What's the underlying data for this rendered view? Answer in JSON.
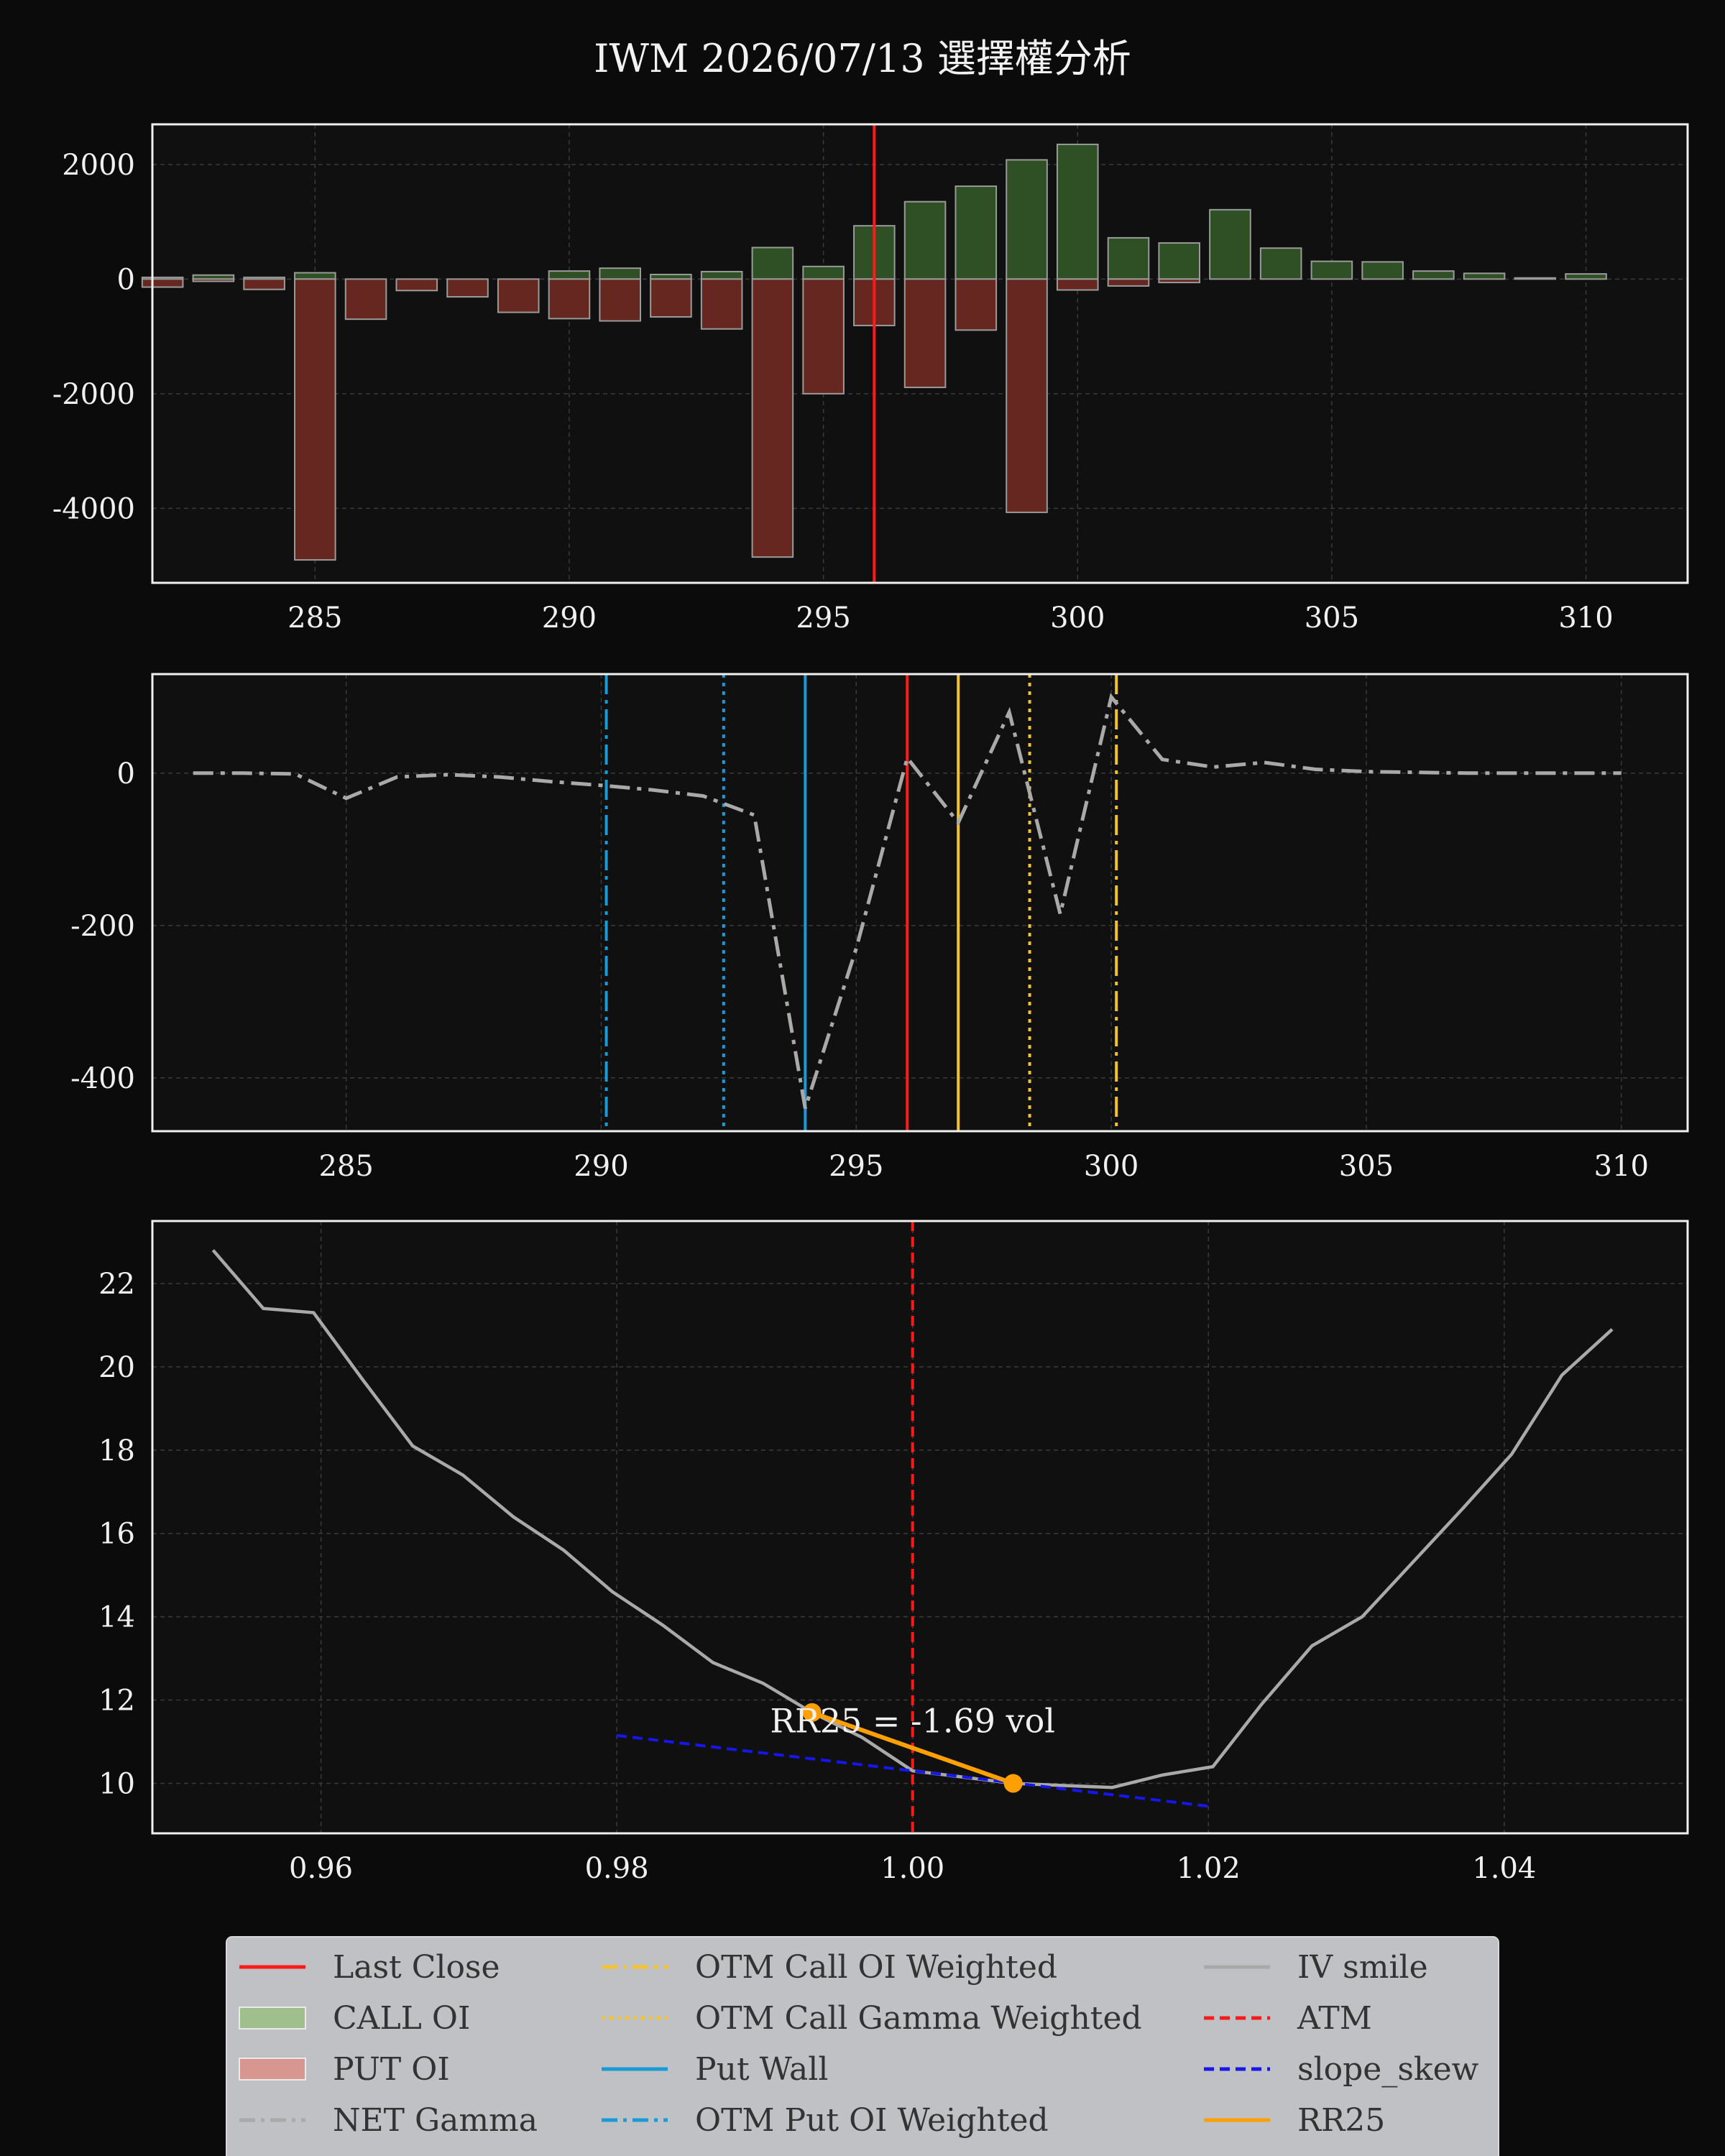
{
  "title": "IWM 2026/07/13 選擇權分析",
  "colors": {
    "background": "#0b0b0b",
    "panel": "#101010",
    "call": "#2f4f24",
    "put": "#652720",
    "last_close": "#ff1a1a",
    "net_gamma": "#a9a9a9",
    "otm_call": "#f1c232",
    "put_wall": "#1a9ad6",
    "iv_smile": "#a9a9a9",
    "atm": "#ff1a1a",
    "slope_skew": "#1616ee",
    "rr25": "#ffa000"
  },
  "chart_data": [
    {
      "type": "bar",
      "name": "oi_panel",
      "x_ticks": [
        285,
        290,
        295,
        300,
        305,
        310
      ],
      "y_ticks": [
        2000,
        0,
        -2000,
        -4000
      ],
      "xlim": [
        281.8,
        312.0
      ],
      "ylim": [
        -5300,
        2700
      ],
      "strikes": [
        282,
        283,
        284,
        285,
        286,
        287,
        288,
        289,
        290,
        291,
        292,
        293,
        294,
        295,
        296,
        297,
        298,
        299,
        300,
        301,
        302,
        303,
        304,
        305,
        306,
        307,
        308,
        309,
        310
      ],
      "call_oi": [
        30,
        70,
        30,
        110,
        0,
        0,
        0,
        0,
        140,
        190,
        80,
        130,
        550,
        220,
        930,
        1350,
        1620,
        2080,
        2350,
        720,
        630,
        1210,
        540,
        310,
        300,
        140,
        100,
        20,
        90
      ],
      "put_oi": [
        -140,
        -40,
        -180,
        -4900,
        -700,
        -200,
        -310,
        -580,
        -690,
        -730,
        -660,
        -870,
        -4850,
        -2000,
        -810,
        -1890,
        -890,
        -4070,
        -190,
        -120,
        -60,
        0,
        0,
        0,
        0,
        0,
        0,
        0,
        0
      ],
      "last_close": 296.0
    },
    {
      "type": "line",
      "name": "gamma_panel",
      "x_ticks": [
        285,
        290,
        295,
        300,
        305,
        310
      ],
      "y_ticks": [
        0,
        -200,
        -400
      ],
      "xlim": [
        281.2,
        311.3
      ],
      "ylim": [
        -470,
        130
      ],
      "strikes": [
        282,
        283,
        284,
        285,
        286,
        287,
        288,
        289,
        290,
        291,
        292,
        293,
        294,
        295,
        296,
        297,
        298,
        299,
        300,
        301,
        302,
        303,
        304,
        305,
        306,
        307,
        308,
        309,
        310
      ],
      "net_gamma": [
        0,
        0,
        -1,
        -33,
        -5,
        -2,
        -5,
        -11,
        -16,
        -22,
        -30,
        -55,
        -440,
        -230,
        20,
        -65,
        80,
        -185,
        100,
        18,
        8,
        14,
        5,
        2,
        1,
        0,
        0,
        0,
        0
      ],
      "last_close": 296.0,
      "otm_call_oi_weighted": 300.1,
      "otm_call_gamma_weighted": 298.4,
      "call_level": 297.0,
      "put_wall": 294.0,
      "otm_put_oi_weighted": 290.1,
      "otm_put_gamma_weighted": 292.4
    },
    {
      "type": "line",
      "name": "iv_panel",
      "x_ticks": [
        "0.96",
        "0.98",
        "1.00",
        "1.02",
        "1.04"
      ],
      "x_tick_values": [
        0.96,
        0.98,
        1.0,
        1.02,
        1.04
      ],
      "y_ticks": [
        22,
        20,
        18,
        16,
        14,
        12,
        10
      ],
      "xlim": [
        0.9486,
        1.0524
      ],
      "ylim": [
        8.8,
        23.5
      ],
      "iv_smile": {
        "x": [
          0.9527,
          0.9561,
          0.9595,
          0.9628,
          0.9662,
          0.9696,
          0.973,
          0.9764,
          0.9797,
          0.9831,
          0.9865,
          0.9899,
          0.9932,
          0.9966,
          1.0,
          1.0034,
          1.0068,
          1.0101,
          1.0135,
          1.0169,
          1.0203,
          1.0236,
          1.027,
          1.0304,
          1.0338,
          1.0372,
          1.0405,
          1.0439,
          1.0473
        ],
        "y": [
          22.8,
          21.4,
          21.3,
          19.7,
          18.1,
          17.4,
          16.4,
          15.6,
          14.6,
          13.8,
          12.9,
          12.4,
          11.7,
          11.1,
          10.3,
          10.15,
          10.0,
          9.95,
          9.9,
          10.2,
          10.4,
          11.9,
          13.3,
          14.0,
          15.3,
          16.6,
          17.9,
          19.8,
          20.9
        ]
      },
      "atm": 1.0,
      "slope_skew": {
        "x": [
          0.98,
          1.02
        ],
        "y": [
          11.15,
          9.45
        ]
      },
      "rr25_points": {
        "x": [
          0.9932,
          1.0068
        ],
        "y": [
          11.7,
          10.0
        ]
      },
      "annotation": "RR25 = -1.69 vol"
    }
  ],
  "legend": [
    [
      "Last Close",
      "CALL OI",
      "PUT OI",
      "NET Gamma"
    ],
    [
      "OTM Call OI Weighted",
      "OTM Call Gamma Weighted",
      "Put Wall",
      "OTM Put OI Weighted"
    ],
    [
      "IV smile",
      "ATM",
      "slope_skew",
      "RR25"
    ]
  ]
}
